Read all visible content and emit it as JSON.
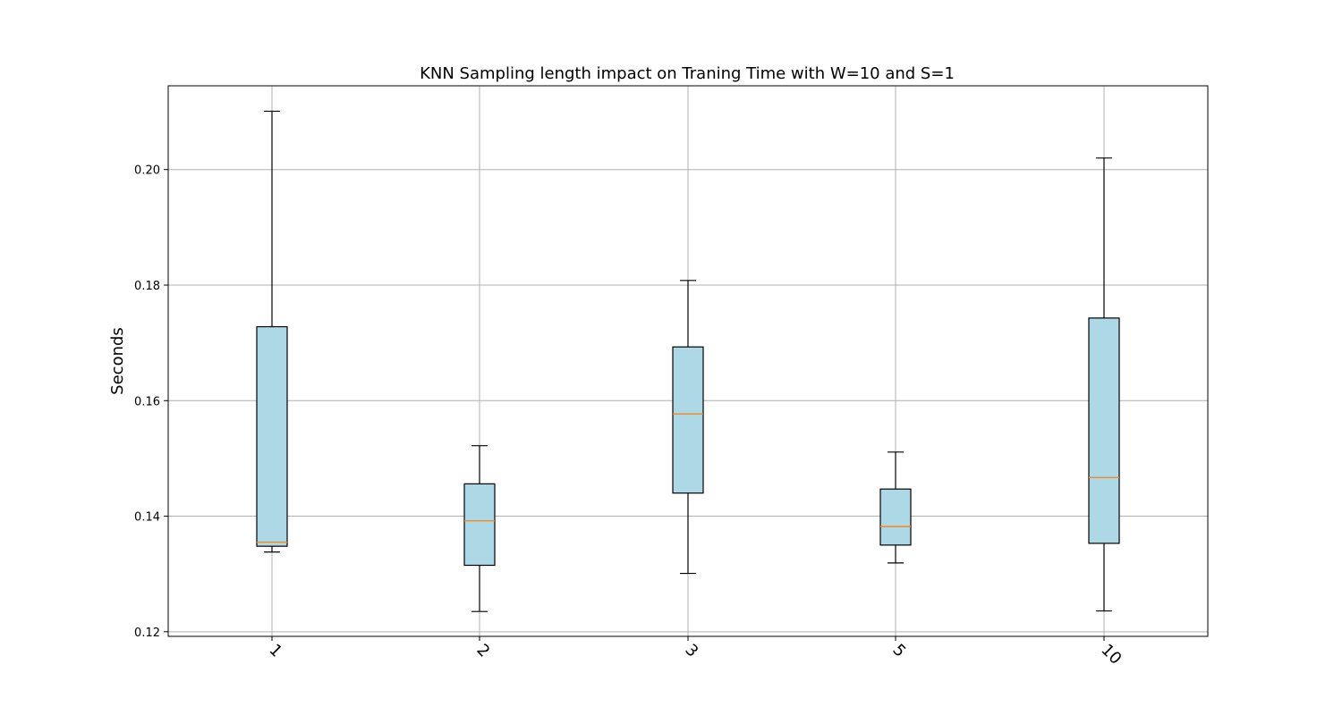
{
  "chart_data": {
    "type": "boxplot",
    "title": "KNN Sampling length impact on Traning Time with W=10 and S=1",
    "xlabel": "",
    "ylabel": "Seconds",
    "categories": [
      "1",
      "2",
      "3",
      "5",
      "10"
    ],
    "boxes": [
      {
        "category": "1",
        "whislo": 0.1338,
        "q1": 0.1348,
        "med": 0.1355,
        "q3": 0.1728,
        "whishi": 0.2101
      },
      {
        "category": "2",
        "whislo": 0.1235,
        "q1": 0.1315,
        "med": 0.1392,
        "q3": 0.1456,
        "whishi": 0.1522
      },
      {
        "category": "3",
        "whislo": 0.1301,
        "q1": 0.144,
        "med": 0.1577,
        "q3": 0.1693,
        "whishi": 0.1808
      },
      {
        "category": "5",
        "whislo": 0.1319,
        "q1": 0.135,
        "med": 0.1382,
        "q3": 0.1447,
        "whishi": 0.1511
      },
      {
        "category": "10",
        "whislo": 0.1236,
        "q1": 0.1353,
        "med": 0.1467,
        "q3": 0.1743,
        "whishi": 0.202
      }
    ],
    "yticks": [
      "0.12",
      "0.14",
      "0.16",
      "0.18",
      "0.20"
    ],
    "ylim": [
      0.1192,
      0.2145
    ],
    "grid": true,
    "box_fill": "#add8e6",
    "median_color": "#ff7f0e",
    "xtick_rotation": -45
  }
}
